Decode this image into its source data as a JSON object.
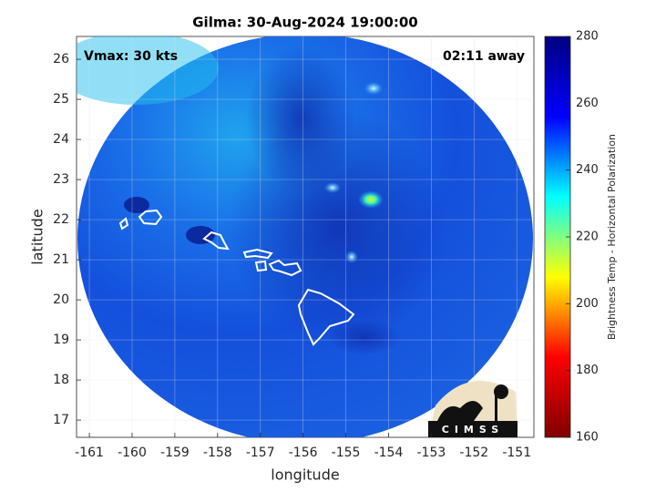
{
  "chart_data": {
    "type": "map",
    "title": "Gilma: 30-Aug-2024 19:00:00",
    "annotations": [
      "Vmax: 30 kts",
      "02:11 away"
    ],
    "xlabel": "longitude",
    "ylabel": "latitude",
    "xlim": [
      -161.3,
      -150.6
    ],
    "ylim": [
      16.57,
      26.57
    ],
    "xticks": [
      -161,
      -160,
      -159,
      -158,
      -157,
      -156,
      -155,
      -154,
      -153,
      -152,
      -151
    ],
    "yticks": [
      17,
      18,
      19,
      20,
      21,
      22,
      23,
      24,
      25,
      26
    ],
    "grid": true,
    "colorbar": {
      "lim": [
        160,
        280
      ],
      "ticks": [
        160,
        180,
        200,
        220,
        240,
        260,
        280
      ],
      "label": "Brightness Temp - Horizontal Polarization",
      "colors": [
        "#800000",
        "#ff0000",
        "#ffff00",
        "#00ffff",
        "#0000ff",
        "#000080"
      ]
    },
    "logo": "CIMSS"
  }
}
